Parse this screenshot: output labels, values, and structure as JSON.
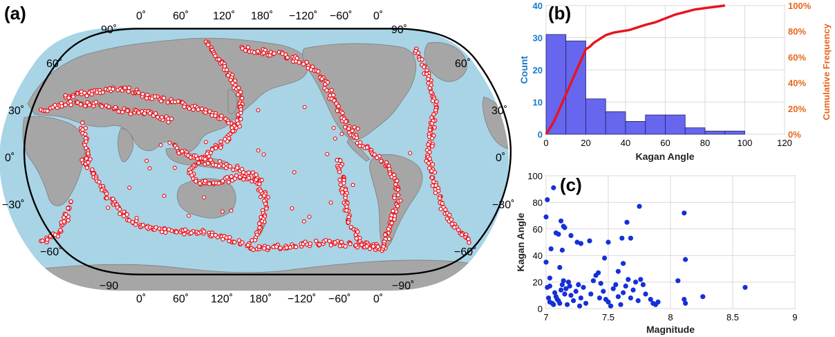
{
  "panels": {
    "a": "(a)",
    "b": "(b)",
    "c": "(c)"
  },
  "map": {
    "top_lon_labels": [
      "0˚",
      "60˚",
      "120˚",
      "180˚",
      "−120˚",
      "−60˚",
      "0˚"
    ],
    "bottom_lon_labels": [
      "0˚",
      "60˚",
      "120˚",
      "180˚",
      "−120˚",
      "−60˚",
      "0˚"
    ],
    "left_lat_labels": [
      "90˚",
      "60˚",
      "30˚",
      "0˚",
      "−30˚",
      "−60˚",
      "−90"
    ],
    "right_lat_labels": [
      "90˚",
      "60˚",
      "30˚",
      "0˚",
      "−30˚",
      "−60˚",
      "−90˚"
    ],
    "colors": {
      "ocean": "#a8d4e6",
      "land": "#a6a6a6",
      "events": "#e8141e",
      "frame": "#000000"
    }
  },
  "chart_data": [
    {
      "panel": "b",
      "type": "bar",
      "xlabel": "Kagan Angle",
      "ylabel": "Count",
      "ylabel_right": "Cumulative Frequency",
      "bin_edges": [
        0,
        10,
        20,
        30,
        40,
        50,
        60,
        70,
        80,
        90,
        100
      ],
      "values": [
        31,
        29,
        11,
        7,
        4,
        6,
        6,
        2,
        1,
        1
      ],
      "xlim": [
        0,
        120
      ],
      "ylim": [
        0,
        40
      ],
      "xticks": [
        "0",
        "20",
        "40",
        "60",
        "80",
        "100",
        "120"
      ],
      "yticks": [
        "0",
        "10",
        "20",
        "30",
        "40"
      ],
      "y2ticks": [
        "0%",
        "20%",
        "40%",
        "60%",
        "80%",
        "100%"
      ],
      "cumulative_line": {
        "x": [
          0,
          2,
          4,
          6,
          8,
          10,
          12,
          14,
          16,
          18,
          20,
          22,
          24,
          26,
          28,
          30,
          34,
          38,
          42,
          46,
          50,
          55,
          60,
          65,
          70,
          75,
          80,
          85,
          90
        ],
        "y": [
          0,
          5,
          10,
          17,
          24,
          31,
          38,
          45,
          52,
          59,
          66,
          68,
          71,
          73,
          75,
          77,
          79,
          80,
          81,
          83,
          85,
          87,
          90,
          93,
          95,
          97,
          98,
          99,
          100
        ]
      },
      "grid": true,
      "colors": {
        "bars": "#6666ee",
        "bar_edge": "#222266",
        "line": "#e8141e",
        "left_axis": "#1a78c8",
        "right_axis": "#e8641e"
      }
    },
    {
      "panel": "c",
      "type": "scatter",
      "xlabel": "Magnitude",
      "ylabel": "Kagan Angle",
      "xlim": [
        7,
        9
      ],
      "ylim": [
        0,
        100
      ],
      "xticks": [
        "7",
        "7.5",
        "8",
        "8.5",
        "9"
      ],
      "yticks": [
        "0",
        "20",
        "40",
        "60",
        "80",
        "100"
      ],
      "grid": true,
      "colors": {
        "points": "#1530d8"
      },
      "points": [
        [
          7.06,
          91
        ],
        [
          7.01,
          82
        ],
        [
          7.0,
          69
        ],
        [
          7.12,
          66
        ],
        [
          7.15,
          61
        ],
        [
          7.14,
          62
        ],
        [
          7.08,
          57
        ],
        [
          7.1,
          56
        ],
        [
          7.2,
          55
        ],
        [
          7.25,
          50
        ],
        [
          7.28,
          49
        ],
        [
          7.35,
          51
        ],
        [
          7.04,
          45
        ],
        [
          7.13,
          44
        ],
        [
          7.0,
          35
        ],
        [
          7.11,
          31
        ],
        [
          7.03,
          17
        ],
        [
          7.01,
          16
        ],
        [
          7.02,
          8
        ],
        [
          7.03,
          5
        ],
        [
          7.05,
          4
        ],
        [
          7.06,
          3
        ],
        [
          7.07,
          12
        ],
        [
          7.08,
          9
        ],
        [
          7.09,
          7
        ],
        [
          7.1,
          6
        ],
        [
          7.11,
          4
        ],
        [
          7.12,
          14
        ],
        [
          7.13,
          18
        ],
        [
          7.14,
          21
        ],
        [
          7.15,
          11
        ],
        [
          7.16,
          15
        ],
        [
          7.17,
          3
        ],
        [
          7.18,
          20
        ],
        [
          7.19,
          17
        ],
        [
          7.2,
          10
        ],
        [
          7.22,
          6
        ],
        [
          7.24,
          13
        ],
        [
          7.26,
          18
        ],
        [
          7.28,
          8
        ],
        [
          7.3,
          16
        ],
        [
          7.32,
          4
        ],
        [
          7.36,
          11
        ],
        [
          7.38,
          21
        ],
        [
          7.4,
          25
        ],
        [
          7.42,
          27
        ],
        [
          7.44,
          19
        ],
        [
          7.46,
          13
        ],
        [
          7.48,
          7
        ],
        [
          7.5,
          5
        ],
        [
          7.52,
          2
        ],
        [
          7.54,
          15
        ],
        [
          7.56,
          18
        ],
        [
          7.58,
          9
        ],
        [
          7.6,
          3
        ],
        [
          7.62,
          12
        ],
        [
          7.64,
          17
        ],
        [
          7.66,
          22
        ],
        [
          7.68,
          8
        ],
        [
          7.7,
          14
        ],
        [
          7.72,
          20
        ],
        [
          7.74,
          6
        ],
        [
          7.76,
          22
        ],
        [
          7.78,
          18
        ],
        [
          7.8,
          11
        ],
        [
          7.84,
          7
        ],
        [
          7.86,
          4
        ],
        [
          7.88,
          3
        ],
        [
          7.9,
          5
        ],
        [
          7.47,
          38
        ],
        [
          7.5,
          50
        ],
        [
          7.61,
          53
        ],
        [
          7.65,
          65
        ],
        [
          7.68,
          53
        ],
        [
          7.75,
          77
        ],
        [
          7.62,
          34
        ],
        [
          7.43,
          8
        ],
        [
          7.03,
          23
        ],
        [
          8.06,
          21
        ],
        [
          8.11,
          72
        ],
        [
          8.12,
          37
        ],
        [
          8.11,
          7
        ],
        [
          8.12,
          4
        ],
        [
          8.26,
          9
        ],
        [
          8.6,
          16
        ],
        [
          7.58,
          28
        ],
        [
          7.27,
          2
        ]
      ]
    }
  ]
}
